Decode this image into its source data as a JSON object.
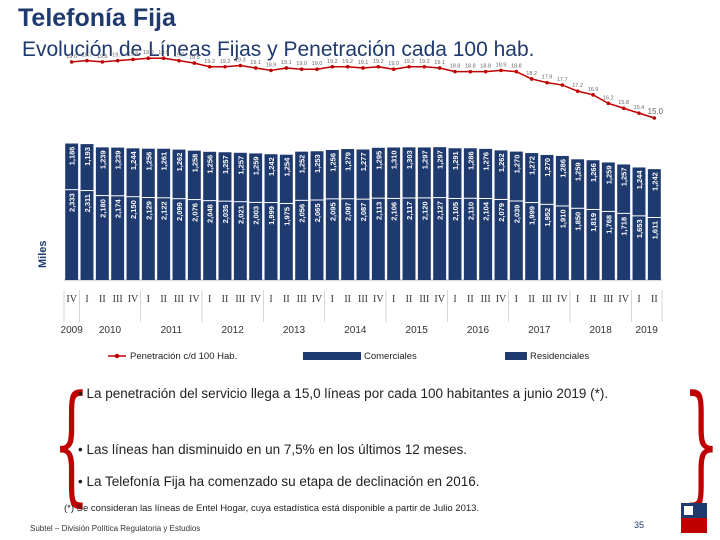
{
  "header": {
    "title": "Telefonía Fija",
    "subtitle": "Evolución de Líneas Fijas y Penetración cada 100 hab."
  },
  "chart_data": {
    "type": "bar",
    "stacked": true,
    "ylabel": "Miles",
    "quarters": [
      "IV",
      "I",
      "II",
      "III",
      "IV",
      "I",
      "II",
      "III",
      "IV",
      "I",
      "II",
      "III",
      "IV",
      "I",
      "II",
      "III",
      "IV",
      "I",
      "II",
      "III",
      "IV",
      "I",
      "II",
      "III",
      "IV",
      "I",
      "II",
      "III",
      "IV",
      "I",
      "II",
      "III",
      "IV",
      "I",
      "II",
      "III",
      "IV",
      "I",
      "II"
    ],
    "years": [
      {
        "label": "2009",
        "start": 0,
        "count": 1
      },
      {
        "label": "2010",
        "start": 1,
        "count": 4
      },
      {
        "label": "2011",
        "start": 5,
        "count": 4
      },
      {
        "label": "2012",
        "start": 9,
        "count": 4
      },
      {
        "label": "2013",
        "start": 13,
        "count": 4
      },
      {
        "label": "2014",
        "start": 17,
        "count": 4
      },
      {
        "label": "2015",
        "start": 21,
        "count": 4
      },
      {
        "label": "2016",
        "start": 25,
        "count": 4
      },
      {
        "label": "2017",
        "start": 29,
        "count": 4
      },
      {
        "label": "2018",
        "start": 33,
        "count": 4
      },
      {
        "label": "2019",
        "start": 37,
        "count": 2
      }
    ],
    "series": [
      {
        "name": "Residenciales",
        "color": "#1f3a6e",
        "values": [
          2333,
          2311,
          2180,
          2174,
          2150,
          2129,
          2122,
          2099,
          2076,
          2048,
          2035,
          2021,
          2003,
          1999,
          1975,
          2056,
          2065,
          2095,
          2097,
          2087,
          2113,
          2106,
          2117,
          2120,
          2127,
          2105,
          2110,
          2104,
          2079,
          2039,
          1999,
          1952,
          1910,
          1850,
          1819,
          1768,
          1718,
          1653,
          1611
        ]
      },
      {
        "name": "Comerciales",
        "color": "#1f3a6e",
        "values": [
          1186,
          1193,
          1239,
          1239,
          1244,
          1256,
          1261,
          1262,
          1258,
          1256,
          1257,
          1257,
          1259,
          1242,
          1254,
          1252,
          1253,
          1256,
          1279,
          1277,
          1295,
          1310,
          1303,
          1297,
          1297,
          1291,
          1286,
          1276,
          1262,
          1270,
          1272,
          1270,
          1286,
          1259,
          1266,
          1259,
          1257,
          1244,
          1242
        ]
      },
      {
        "name": "Penetración c/d 100 Hab.",
        "color": "#c00000",
        "values": [
          19.6,
          19.7,
          19.6,
          19.7,
          19.8,
          19.9,
          19.9,
          19.7,
          19.5,
          19.2,
          19.2,
          19.3,
          19.1,
          18.9,
          19.1,
          19.0,
          19.0,
          19.2,
          19.2,
          19.1,
          19.2,
          19.0,
          19.2,
          19.2,
          19.1,
          18.8,
          18.8,
          18.8,
          18.9,
          18.8,
          18.2,
          17.9,
          17.7,
          17.2,
          16.9,
          16.2,
          15.8,
          15.4,
          15.0
        ]
      }
    ]
  },
  "bullets": [
    "La penetración del servicio llega a 15,0 líneas por cada 100 habitantes a junio 2019 (*).",
    "Las líneas han disminuido en un 7,5% en los últimos 12 meses.",
    "La Telefonía Fija ha comenzado su etapa de declinación en 2016."
  ],
  "bullet_marker": "•",
  "footnote": "(*) Se consideran las líneas de Entel Hogar, cuya estadística está disponible a partir de Julio 2013.",
  "source": "Subtel – División Política Regulatoria y Estudios",
  "page_number": "35",
  "colors": {
    "title": "#1f3a6e",
    "bar": "#1f3a6e",
    "line": "#c00000",
    "brace": "#c00000"
  }
}
